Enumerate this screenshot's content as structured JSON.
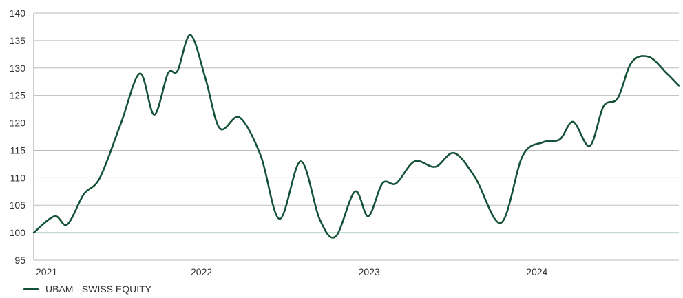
{
  "chart_data": {
    "type": "line",
    "title": "",
    "xlabel": "",
    "ylabel": "",
    "ylim": [
      95,
      140
    ],
    "yticks": [
      95,
      100,
      105,
      110,
      115,
      120,
      125,
      130,
      135,
      140
    ],
    "xlim": [
      "2021-01-01",
      "2024-11-05"
    ],
    "xtick_labels": [
      "2021",
      "2022",
      "2023",
      "2024"
    ],
    "xtick_dates": [
      "2021-01-01",
      "2022-01-01",
      "2023-01-01",
      "2024-01-01"
    ],
    "grid": "horizontal",
    "legend": "bottom-left",
    "baseline": 100,
    "colors": {
      "series": "#145237",
      "baseline": "#b7d7c9",
      "grid": "#bdbdbd"
    },
    "series": [
      {
        "name": "UBAM - SWISS EQUITY",
        "points": [
          [
            "2021-01-01",
            100.0
          ],
          [
            "2021-02-15",
            103.0
          ],
          [
            "2021-03-15",
            101.5
          ],
          [
            "2021-04-20",
            107.0
          ],
          [
            "2021-05-25",
            110.0
          ],
          [
            "2021-07-10",
            120.0
          ],
          [
            "2021-08-20",
            129.0
          ],
          [
            "2021-09-20",
            121.5
          ],
          [
            "2021-10-20",
            129.0
          ],
          [
            "2021-11-10",
            129.5
          ],
          [
            "2021-12-08",
            136.0
          ],
          [
            "2022-01-10",
            128.0
          ],
          [
            "2022-02-10",
            119.0
          ],
          [
            "2022-03-25",
            121.0
          ],
          [
            "2022-05-10",
            114.0
          ],
          [
            "2022-06-20",
            102.5
          ],
          [
            "2022-08-05",
            113.0
          ],
          [
            "2022-09-15",
            102.5
          ],
          [
            "2022-10-20",
            99.3
          ],
          [
            "2022-12-01",
            107.5
          ],
          [
            "2022-12-30",
            103.0
          ],
          [
            "2023-01-30",
            109.0
          ],
          [
            "2023-03-01",
            109.0
          ],
          [
            "2023-04-10",
            113.0
          ],
          [
            "2023-05-25",
            112.0
          ],
          [
            "2023-07-05",
            114.5
          ],
          [
            "2023-08-20",
            110.0
          ],
          [
            "2023-10-15",
            101.8
          ],
          [
            "2023-12-01",
            114.0
          ],
          [
            "2024-01-15",
            116.5
          ],
          [
            "2024-02-20",
            117.0
          ],
          [
            "2024-03-20",
            120.2
          ],
          [
            "2024-04-25",
            115.8
          ],
          [
            "2024-05-25",
            123.0
          ],
          [
            "2024-06-25",
            124.5
          ],
          [
            "2024-07-25",
            131.0
          ],
          [
            "2024-09-01",
            132.0
          ],
          [
            "2024-10-10",
            129.0
          ],
          [
            "2024-11-05",
            126.8
          ]
        ]
      }
    ]
  }
}
